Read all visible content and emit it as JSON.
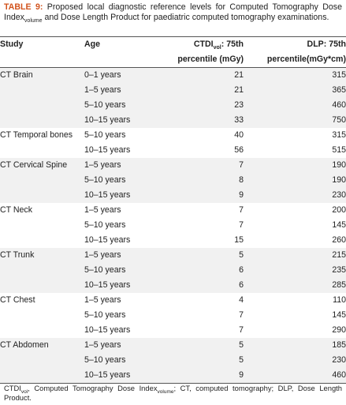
{
  "caption": {
    "label": "TABLE 9:",
    "text_1": " Proposed local diagnostic reference levels for Computed Tomography Dose Index",
    "sub": "volume",
    "text_2": " and Dose Length Product for paediatric computed tomography examinations."
  },
  "table": {
    "headers": {
      "study": "Study",
      "age": "Age",
      "ctdi_a": "CTDI",
      "ctdi_sub": "vol",
      "ctdi_b": ": 75th",
      "ctdi_c": "percentile (mGy)",
      "dlp_a": "DLP: 75th",
      "dlp_b": "percentile(mGy*cm)"
    },
    "groups": [
      {
        "study": "CT Brain",
        "rows": [
          {
            "age": "0–1 years",
            "ctdi": "21",
            "dlp": "315"
          },
          {
            "age": "1–5 years",
            "ctdi": "21",
            "dlp": "365"
          },
          {
            "age": "5–10 years",
            "ctdi": "23",
            "dlp": "460"
          },
          {
            "age": "10–15 years",
            "ctdi": "33",
            "dlp": "750"
          }
        ]
      },
      {
        "study": "CT Temporal bones",
        "rows": [
          {
            "age": "5–10 years",
            "ctdi": "40",
            "dlp": "315"
          },
          {
            "age": "10–15 years",
            "ctdi": "56",
            "dlp": "515"
          }
        ]
      },
      {
        "study": "CT Cervical Spine",
        "rows": [
          {
            "age": "1–5 years",
            "ctdi": "7",
            "dlp": "190"
          },
          {
            "age": "5–10 years",
            "ctdi": "8",
            "dlp": "190"
          },
          {
            "age": "10–15 years",
            "ctdi": "9",
            "dlp": "230"
          }
        ]
      },
      {
        "study": "CT Neck",
        "rows": [
          {
            "age": "1–5 years",
            "ctdi": "7",
            "dlp": "200"
          },
          {
            "age": "5–10 years",
            "ctdi": "7",
            "dlp": "145"
          },
          {
            "age": "10–15 years",
            "ctdi": "15",
            "dlp": "260"
          }
        ]
      },
      {
        "study": "CT Trunk",
        "rows": [
          {
            "age": "1–5 years",
            "ctdi": "5",
            "dlp": "215"
          },
          {
            "age": "5–10 years",
            "ctdi": "6",
            "dlp": "235"
          },
          {
            "age": "10–15 years",
            "ctdi": "6",
            "dlp": "285"
          }
        ]
      },
      {
        "study": "CT Chest",
        "rows": [
          {
            "age": "1–5 years",
            "ctdi": "4",
            "dlp": "110"
          },
          {
            "age": "5–10 years",
            "ctdi": "7",
            "dlp": "145"
          },
          {
            "age": "10–15 years",
            "ctdi": "7",
            "dlp": "290"
          }
        ]
      },
      {
        "study": "CT Abdomen",
        "rows": [
          {
            "age": "1–5 years",
            "ctdi": "5",
            "dlp": "185"
          },
          {
            "age": "5–10 years",
            "ctdi": "5",
            "dlp": "230"
          },
          {
            "age": "10–15 years",
            "ctdi": "9",
            "dlp": "460"
          }
        ]
      }
    ],
    "shade_color": "#f1f1f1"
  },
  "footnote": {
    "t1": "CTDI",
    "s1": "vol",
    "t2": ", Computed Tomography Dose Index",
    "s2": "volume",
    "t3": "; CT, computed tomography; DLP, Dose Length Product."
  }
}
